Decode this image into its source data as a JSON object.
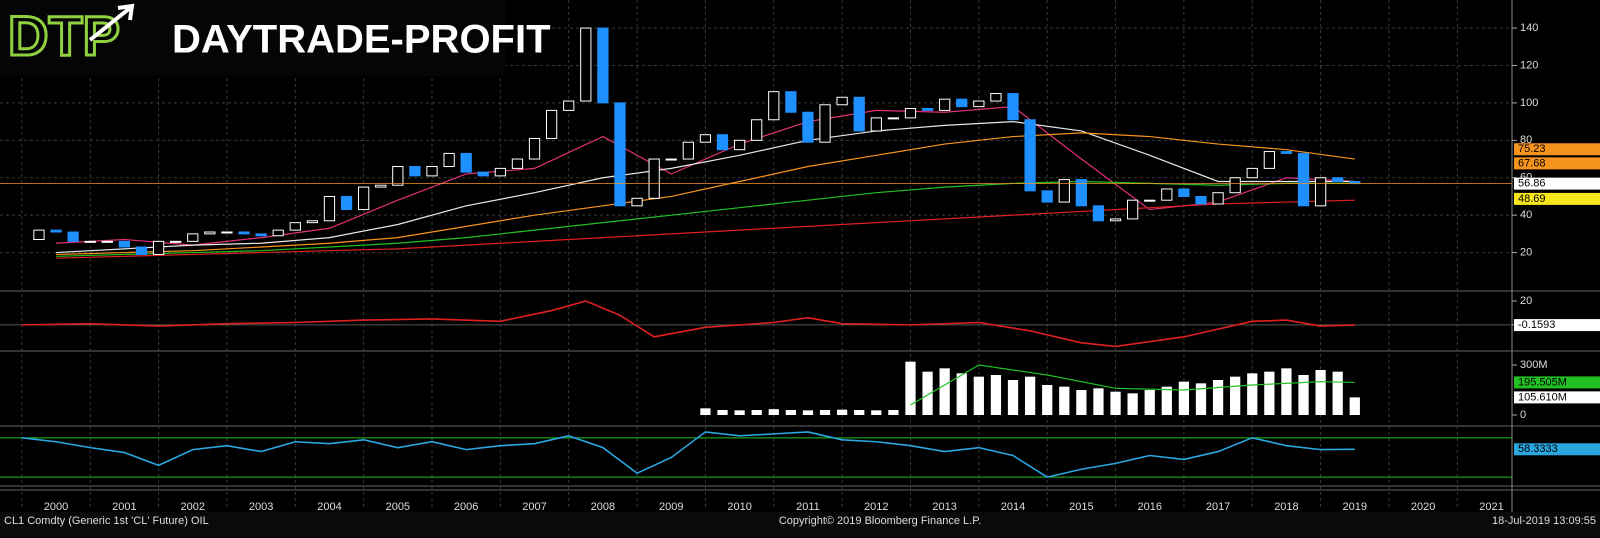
{
  "logo": {
    "mark": "DTP",
    "name": "DAYTRADE-PROFIT"
  },
  "chart_data": [
    {
      "type": "candlestick",
      "up_color": "#ffffff",
      "down_color": "#1e90ff",
      "x": [
        2000,
        2000.25,
        2000.5,
        2000.75,
        2001,
        2001.25,
        2001.5,
        2001.75,
        2002,
        2002.25,
        2002.5,
        2002.75,
        2003,
        2003.25,
        2003.5,
        2003.75,
        2004,
        2004.25,
        2004.5,
        2004.75,
        2005,
        2005.25,
        2005.5,
        2005.75,
        2006,
        2006.25,
        2006.5,
        2006.75,
        2007,
        2007.25,
        2007.5,
        2007.75,
        2008,
        2008.25,
        2008.5,
        2008.75,
        2009,
        2009.25,
        2009.5,
        2009.75,
        2010,
        2010.25,
        2010.5,
        2010.75,
        2011,
        2011.25,
        2011.5,
        2011.75,
        2012,
        2012.25,
        2012.5,
        2012.75,
        2013,
        2013.25,
        2013.5,
        2013.75,
        2014,
        2014.25,
        2014.5,
        2014.75,
        2015,
        2015.25,
        2015.5,
        2015.75,
        2016,
        2016.25,
        2016.5,
        2016.75,
        2017,
        2017.25,
        2017.5,
        2017.75,
        2018,
        2018.25,
        2018.5,
        2018.75,
        2019,
        2019.25,
        2019.5
      ],
      "values": [
        27,
        32,
        31,
        26,
        26,
        26,
        23,
        19,
        26,
        26,
        30,
        31,
        31,
        30,
        29,
        32,
        36,
        37,
        50,
        43,
        55,
        56,
        66,
        61,
        66,
        73,
        63,
        61,
        65,
        70,
        81,
        96,
        101,
        140,
        100,
        45,
        49,
        70,
        70,
        79,
        83,
        75,
        80,
        91,
        106,
        95,
        79,
        99,
        103,
        85,
        92,
        92,
        97,
        96,
        102,
        98,
        101,
        105,
        91,
        53,
        47,
        59,
        45,
        37,
        38,
        48,
        48,
        54,
        50,
        46,
        52,
        60,
        65,
        74,
        73,
        45,
        60,
        58,
        56.86
      ],
      "lines": [
        {
          "color": "#e0307a",
          "x": [
            2000.5,
            2001.5,
            2002.5,
            2003.5,
            2004.5,
            2005.5,
            2006.5,
            2007.5,
            2008.5,
            2009.5,
            2010.5,
            2011.5,
            2012.5,
            2013.5,
            2014.5,
            2015.5,
            2016.5,
            2017.5,
            2018.5,
            2019.5
          ],
          "values": [
            25,
            27,
            24,
            28,
            33,
            48,
            62,
            65,
            82,
            62,
            78,
            90,
            96,
            95,
            98,
            70,
            43,
            47,
            60,
            58
          ]
        },
        {
          "color": "#e8e8e8",
          "x": [
            2000.5,
            2001.5,
            2002.5,
            2003.5,
            2004.5,
            2005.5,
            2006.5,
            2007.5,
            2008.5,
            2009.5,
            2010.5,
            2011.5,
            2012.5,
            2013.5,
            2014.5,
            2015.5,
            2016.5,
            2017.5,
            2018.5,
            2019.5
          ],
          "values": [
            20,
            22,
            24,
            25,
            28,
            35,
            45,
            52,
            60,
            65,
            72,
            80,
            85,
            88,
            90,
            85,
            72,
            58,
            58,
            58
          ]
        },
        {
          "color": "#f7941d",
          "x": [
            2000.5,
            2001.5,
            2002.5,
            2003.5,
            2004.5,
            2005.5,
            2006.5,
            2007.5,
            2008.5,
            2009.5,
            2010.5,
            2011.5,
            2012.5,
            2013.5,
            2014.5,
            2015.5,
            2016.5,
            2017.5,
            2018.5,
            2019.5
          ],
          "values": [
            19,
            20,
            21,
            23,
            25,
            28,
            34,
            40,
            45,
            50,
            58,
            66,
            72,
            78,
            82,
            84,
            82,
            78,
            75,
            70
          ]
        },
        {
          "color": "#22c022",
          "x": [
            2000.5,
            2001.5,
            2002.5,
            2003.5,
            2004.5,
            2005.5,
            2006.5,
            2007.5,
            2008.5,
            2009.5,
            2010.5,
            2011.5,
            2012.5,
            2013.5,
            2014.5,
            2015.5,
            2016.5,
            2017.5,
            2018.5,
            2019.5
          ],
          "values": [
            18,
            19,
            20,
            21,
            23,
            25,
            28,
            32,
            36,
            40,
            44,
            48,
            52,
            55,
            57,
            58,
            57,
            56,
            57,
            57
          ]
        },
        {
          "color": "#e02020",
          "x": [
            2000.5,
            2001.5,
            2002.5,
            2003.5,
            2004.5,
            2005.5,
            2006.5,
            2007.5,
            2008.5,
            2009.5,
            2010.5,
            2011.5,
            2012.5,
            2013.5,
            2014.5,
            2015.5,
            2016.5,
            2017.5,
            2018.5,
            2019.5
          ],
          "values": [
            17,
            18,
            19,
            20,
            21,
            22,
            24,
            26,
            28,
            30,
            32,
            34,
            36,
            38,
            40,
            42,
            44,
            46,
            47,
            48
          ]
        }
      ],
      "ylim": [
        0,
        155
      ],
      "yticks": [
        20,
        40,
        60,
        80,
        100,
        120,
        140
      ],
      "xlim": [
        1999.68,
        2021.8
      ],
      "xticks": [
        2000,
        2001,
        2002,
        2003,
        2004,
        2005,
        2006,
        2007,
        2008,
        2009,
        2010,
        2011,
        2012,
        2013,
        2014,
        2015,
        2016,
        2017,
        2018,
        2019,
        2020,
        2021
      ],
      "price_labels": [
        {
          "value": 75.23,
          "label": "75.23",
          "color": "#f7941d"
        },
        {
          "value": 67.68,
          "label": "67.68",
          "color": "#f7941d"
        },
        {
          "value": 56.86,
          "label": "56.86",
          "color": "#ffffff"
        },
        {
          "value": 48.69,
          "label": "48.69",
          "color": "#f5e61e"
        }
      ]
    },
    {
      "type": "line",
      "color": "#e02020",
      "x": [
        2000,
        2001,
        2002,
        2003,
        2004,
        2005,
        2006,
        2007,
        2007.75,
        2008.25,
        2008.75,
        2009.25,
        2010,
        2011,
        2011.5,
        2012,
        2013,
        2014,
        2014.75,
        2015.5,
        2016,
        2017,
        2018,
        2018.5,
        2019,
        2019.5
      ],
      "values": [
        0,
        1,
        -1,
        1,
        2,
        4,
        5,
        3,
        12,
        20,
        8,
        -10,
        -2,
        2,
        6,
        1,
        0,
        2,
        -5,
        -15,
        -18,
        -10,
        3,
        4,
        -1,
        -0.1593
      ],
      "ylim": [
        -21,
        27.5
      ],
      "yticks": [
        20,
        0
      ],
      "last_label": "-0.1593"
    },
    {
      "type": "bar",
      "color": "#ffffff",
      "x": [
        2010,
        2010.25,
        2010.5,
        2010.75,
        2011,
        2011.25,
        2011.5,
        2011.75,
        2012,
        2012.25,
        2012.5,
        2012.75,
        2013,
        2013.25,
        2013.5,
        2013.75,
        2014,
        2014.25,
        2014.5,
        2014.75,
        2015,
        2015.25,
        2015.5,
        2015.75,
        2016,
        2016.25,
        2016.5,
        2016.75,
        2017,
        2017.25,
        2017.5,
        2017.75,
        2018,
        2018.25,
        2018.5,
        2018.75,
        2019,
        2019.25,
        2019.5
      ],
      "values": [
        40000000,
        30000000,
        28000000,
        30000000,
        35000000,
        30000000,
        28000000,
        30000000,
        32000000,
        30000000,
        28000000,
        30000000,
        320000000,
        260000000,
        280000000,
        250000000,
        230000000,
        240000000,
        210000000,
        230000000,
        180000000,
        170000000,
        150000000,
        160000000,
        140000000,
        130000000,
        150000000,
        170000000,
        200000000,
        190000000,
        210000000,
        230000000,
        250000000,
        260000000,
        280000000,
        240000000,
        270000000,
        260000000,
        105610000
      ],
      "avg": {
        "color": "#22c022",
        "x": [
          2013,
          2014,
          2015,
          2016,
          2017,
          2018,
          2019,
          2019.5
        ],
        "values": [
          60000000,
          300000000,
          240000000,
          160000000,
          150000000,
          180000000,
          200000000,
          195505000
        ]
      },
      "ylim": [
        -60000000,
        378000000
      ],
      "yticks": [
        {
          "value": 300000000,
          "label": "300M"
        },
        {
          "value": 0,
          "label": "0"
        }
      ],
      "last_labels": [
        {
          "value": 195505000,
          "label": "195.505M",
          "color": "#22c022"
        },
        {
          "value": 105610000,
          "label": "105.610M",
          "color": "#ffffff"
        }
      ]
    },
    {
      "type": "line",
      "color": "#2aa7e0",
      "x": [
        2000,
        2000.5,
        2001,
        2001.5,
        2002,
        2002.5,
        2003,
        2003.5,
        2004,
        2004.5,
        2005,
        2005.5,
        2006,
        2006.5,
        2007,
        2007.5,
        2008,
        2008.5,
        2009,
        2009.5,
        2010,
        2010.5,
        2011,
        2011.5,
        2012,
        2012.5,
        2013,
        2013.5,
        2014,
        2014.5,
        2015,
        2015.5,
        2016,
        2016.5,
        2017,
        2017.5,
        2018,
        2018.5,
        2019,
        2019.5
      ],
      "values": [
        70,
        66,
        60,
        55,
        42,
        58,
        62,
        56,
        66,
        64,
        68,
        60,
        66,
        58,
        62,
        64,
        72,
        60,
        34,
        50,
        76,
        72,
        74,
        76,
        68,
        66,
        62,
        56,
        60,
        52,
        30,
        38,
        44,
        52,
        48,
        56,
        70,
        62,
        58,
        58.3333
      ],
      "levels": [
        30,
        70
      ],
      "level_color": "#22c022",
      "ylim": [
        22,
        81
      ],
      "last_label": "58.3333"
    }
  ],
  "footer": {
    "left": "CL1 Comdty (Generic 1st 'CL' Future) OIL",
    "center": "Copyright© 2019 Bloomberg Finance L.P.",
    "right": "18-Jul-2019 13:09:55"
  }
}
